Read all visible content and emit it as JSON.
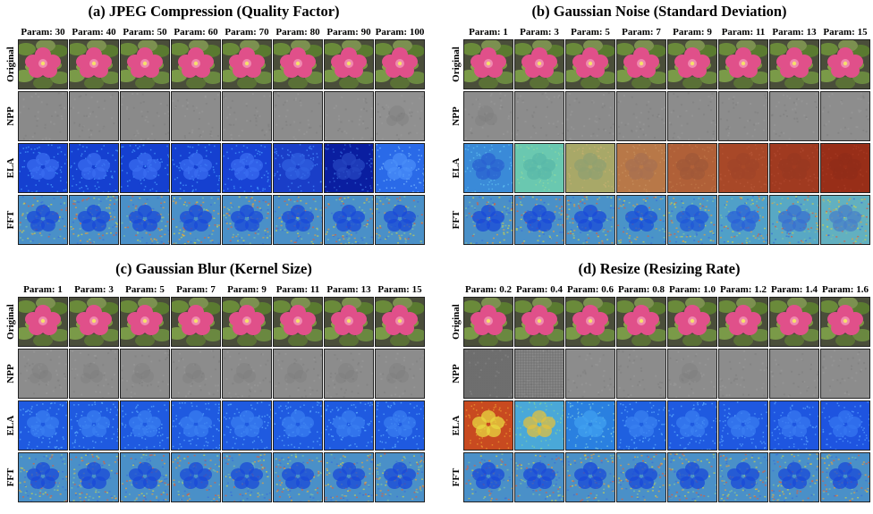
{
  "row_labels": [
    "Original",
    "NPP",
    "ELA",
    "FFT"
  ],
  "panels": [
    {
      "id": "a",
      "title": "(a) JPEG Compression (Quality Factor)",
      "params": [
        "Param: 30",
        "Param: 40",
        "Param: 50",
        "Param: 60",
        "Param: 70",
        "Param: 80",
        "Param: 90",
        "Param: 100"
      ],
      "npp": [
        {
          "bg": "#8a8a8a"
        },
        {
          "bg": "#8b8b8b"
        },
        {
          "bg": "#8a8a8a"
        },
        {
          "bg": "#8c8c8c"
        },
        {
          "bg": "#8b8b8b"
        },
        {
          "bg": "#8c8c8c"
        },
        {
          "bg": "#8d8d8d"
        },
        {
          "bg": "#909090",
          "blobs": true
        }
      ],
      "ela": [
        {
          "bg": "#1540d0",
          "fl": "#3a6cf0",
          "sp": "#4aa0ff"
        },
        {
          "bg": "#1540d0",
          "fl": "#3a6cf0",
          "sp": "#4aa0ff"
        },
        {
          "bg": "#1540d0",
          "fl": "#3a6cf0",
          "sp": "#4aa0ff"
        },
        {
          "bg": "#1540d0",
          "fl": "#3a6cf0",
          "sp": "#4aa0ff"
        },
        {
          "bg": "#1842d4",
          "fl": "#3a6cf0",
          "sp": "#4aa0ff"
        },
        {
          "bg": "#1a3ec8",
          "fl": "#3060e0",
          "sp": "#4a90ff"
        },
        {
          "bg": "#0a1ea0",
          "fl": "#2545c0",
          "sp": "#3a70e0"
        },
        {
          "bg": "#2a6ae8",
          "fl": "#4a8ef8",
          "sp": "#80c0ff"
        }
      ],
      "fft": [
        {
          "bg": "#4a90c8",
          "fl": "#1a4ad8"
        },
        {
          "bg": "#4a90c8",
          "fl": "#1a4ad8"
        },
        {
          "bg": "#4a90c8",
          "fl": "#1a4ad8"
        },
        {
          "bg": "#4a90c8",
          "fl": "#1a4ad8"
        },
        {
          "bg": "#4a90c8",
          "fl": "#1a4ad8"
        },
        {
          "bg": "#4a90c8",
          "fl": "#1a4ad8"
        },
        {
          "bg": "#4a90c8",
          "fl": "#1a4ad8"
        },
        {
          "bg": "#4a90c8",
          "fl": "#1a4ad8"
        }
      ]
    },
    {
      "id": "b",
      "title": "(b) Gaussian Noise (Standard Deviation)",
      "params": [
        "Param: 1",
        "Param: 3",
        "Param: 5",
        "Param: 7",
        "Param: 9",
        "Param: 11",
        "Param: 13",
        "Param: 15"
      ],
      "npp": [
        {
          "bg": "#8c8c8c",
          "blobs": true
        },
        {
          "bg": "#8c8c8c"
        },
        {
          "bg": "#8b8b8b"
        },
        {
          "bg": "#8b8b8b"
        },
        {
          "bg": "#8c8c8c"
        },
        {
          "bg": "#8c8c8c"
        },
        {
          "bg": "#8d8d8d"
        },
        {
          "bg": "#8d8d8d"
        }
      ],
      "ela": [
        {
          "bg": "#3a8ad8",
          "fl": "#2a60d0",
          "sp": "#60c0f0"
        },
        {
          "bg": "#6ac8b0",
          "fl": "#5ab8a8",
          "sp": "#90d8a0"
        },
        {
          "bg": "#a8a868",
          "fl": "#90a070",
          "sp": "#c8b070"
        },
        {
          "bg": "#b87848",
          "fl": "#a87050",
          "sp": "#c89060"
        },
        {
          "bg": "#b06038",
          "fl": "#a05838",
          "sp": "#c07848"
        },
        {
          "bg": "#a84828",
          "fl": "#a04428",
          "sp": "#b85838"
        },
        {
          "bg": "#a03a20",
          "fl": "#983820",
          "sp": "#b04a30"
        },
        {
          "bg": "#982e18",
          "fl": "#902c18",
          "sp": "#a83c24"
        }
      ],
      "fft": [
        {
          "bg": "#4a90c8",
          "fl": "#1a4ad8"
        },
        {
          "bg": "#4a90c8",
          "fl": "#1a4ad8"
        },
        {
          "bg": "#4a92c8",
          "fl": "#1a4ad8"
        },
        {
          "bg": "#4a94c8",
          "fl": "#1a50d8"
        },
        {
          "bg": "#4c98c8",
          "fl": "#2058d8"
        },
        {
          "bg": "#50a0c8",
          "fl": "#2a62d8"
        },
        {
          "bg": "#58a8c4",
          "fl": "#3870d0"
        },
        {
          "bg": "#62b0c0",
          "fl": "#4880c8"
        }
      ]
    },
    {
      "id": "c",
      "title": "(c) Gaussian Blur (Kernel Size)",
      "params": [
        "Param: 1",
        "Param: 3",
        "Param: 5",
        "Param: 7",
        "Param: 9",
        "Param: 11",
        "Param: 13",
        "Param: 15"
      ],
      "npp": [
        {
          "bg": "#8c8c8c",
          "blobs": true
        },
        {
          "bg": "#8c8c8c",
          "blobs": true
        },
        {
          "bg": "#8c8c8c",
          "blobs": true
        },
        {
          "bg": "#8c8c8c",
          "blobs": true
        },
        {
          "bg": "#8c8c8c",
          "blobs": true
        },
        {
          "bg": "#8c8c8c",
          "blobs": true
        },
        {
          "bg": "#8c8c8c",
          "blobs": true
        },
        {
          "bg": "#8c8c8c",
          "blobs": true
        }
      ],
      "ela": [
        {
          "bg": "#1f5ae0",
          "fl": "#3a7ef0",
          "sp": "#60b0ff"
        },
        {
          "bg": "#1f5ae0",
          "fl": "#3a7ef0",
          "sp": "#60b0ff"
        },
        {
          "bg": "#1f5ae0",
          "fl": "#3a7ef0",
          "sp": "#60b0ff"
        },
        {
          "bg": "#1f5ae0",
          "fl": "#3a7ef0",
          "sp": "#60b0ff"
        },
        {
          "bg": "#1f5ae0",
          "fl": "#3a7ef0",
          "sp": "#60b0ff"
        },
        {
          "bg": "#1f5ae0",
          "fl": "#3a7ef0",
          "sp": "#60b0ff"
        },
        {
          "bg": "#1f5ae0",
          "fl": "#3a7ef0",
          "sp": "#60b0ff"
        },
        {
          "bg": "#1f5ae0",
          "fl": "#3a7ef0",
          "sp": "#60b0ff"
        }
      ],
      "fft": [
        {
          "bg": "#4a90c8",
          "fl": "#1a4ad8"
        },
        {
          "bg": "#4a90c8",
          "fl": "#1a4ad8"
        },
        {
          "bg": "#4a90c8",
          "fl": "#1a4ad8"
        },
        {
          "bg": "#4a90c8",
          "fl": "#1a4ad8"
        },
        {
          "bg": "#4a90c8",
          "fl": "#1a4ad8"
        },
        {
          "bg": "#4a90c8",
          "fl": "#1a4ad8"
        },
        {
          "bg": "#4a90c8",
          "fl": "#1a4ad8"
        },
        {
          "bg": "#4a90c8",
          "fl": "#1a4ad8"
        }
      ]
    },
    {
      "id": "d",
      "title": "(d) Resize (Resizing Rate)",
      "params": [
        "Param: 0.2",
        "Param: 0.4",
        "Param: 0.6",
        "Param: 0.8",
        "Param: 1.0",
        "Param: 1.2",
        "Param: 1.4",
        "Param: 1.6"
      ],
      "npp": [
        {
          "bg": "#7a7a7a",
          "grid": "dense"
        },
        {
          "bg": "#8a8a8a",
          "grid": "medium"
        },
        {
          "bg": "#8c8c8c"
        },
        {
          "bg": "#8c8c8c"
        },
        {
          "bg": "#8c8c8c",
          "blobs": true
        },
        {
          "bg": "#8c8c8c"
        },
        {
          "bg": "#8c8c8c"
        },
        {
          "bg": "#8c8c8c"
        }
      ],
      "ela": [
        {
          "bg": "#c84a20",
          "fl": "#e8d840",
          "sp": "#f0a030"
        },
        {
          "bg": "#4aa8d8",
          "fl": "#e0c040",
          "sp": "#80d0a0"
        },
        {
          "bg": "#2a80e0",
          "fl": "#40a0f0",
          "sp": "#80d0e0"
        },
        {
          "bg": "#1f60e0",
          "fl": "#3a80f0",
          "sp": "#60b0ff"
        },
        {
          "bg": "#1f5ae0",
          "fl": "#3a7ef0",
          "sp": "#60b0ff"
        },
        {
          "bg": "#1f58e0",
          "fl": "#3a7cf0",
          "sp": "#5aa8ff"
        },
        {
          "bg": "#1e56e0",
          "fl": "#3878f0",
          "sp": "#58a4ff"
        },
        {
          "bg": "#1e54e0",
          "fl": "#3676f0",
          "sp": "#56a0ff"
        }
      ],
      "fft": [
        {
          "bg": "#4a90c8",
          "fl": "#1a4ad8"
        },
        {
          "bg": "#4a90c8",
          "fl": "#1a4ad8"
        },
        {
          "bg": "#4a90c8",
          "fl": "#1a4ad8"
        },
        {
          "bg": "#4a90c8",
          "fl": "#1a4ad8"
        },
        {
          "bg": "#4a90c8",
          "fl": "#1a4ad8"
        },
        {
          "bg": "#4a90c8",
          "fl": "#1a4ad8"
        },
        {
          "bg": "#4a90c8",
          "fl": "#1a4ad8"
        },
        {
          "bg": "#4a90c8",
          "fl": "#1a4ad8"
        }
      ]
    }
  ]
}
